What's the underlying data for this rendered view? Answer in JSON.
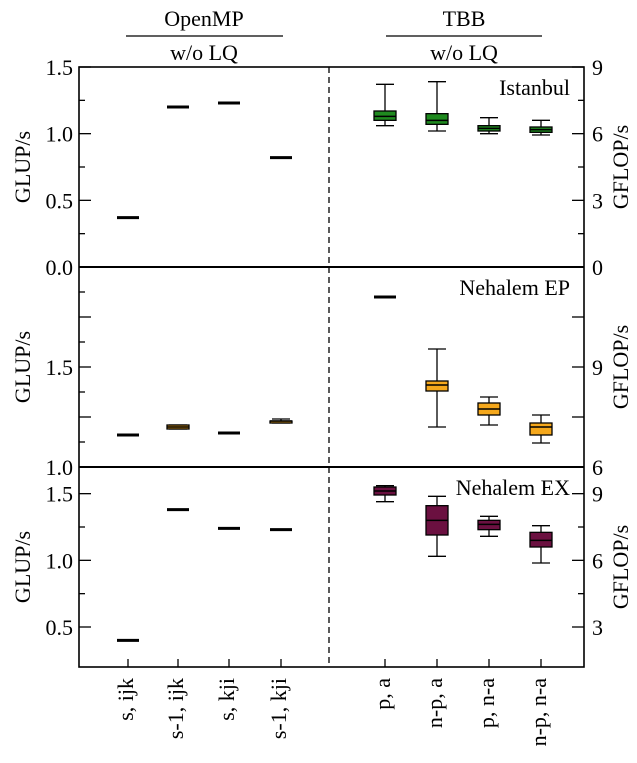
{
  "groups": {
    "left": {
      "title": "OpenMP",
      "subtitle": "w/o LQ"
    },
    "right": {
      "title": "TBB",
      "subtitle": "w/o LQ"
    }
  },
  "colors": {
    "Istanbul": "#1f8a1f",
    "Nehalem EP": "#f5a81c",
    "Nehalem EX": "#6b1040"
  },
  "chart_data": {
    "type": "box",
    "categories": [
      "s, ijk",
      "s-1, ijk",
      "s, kji",
      "s-1, kji",
      "p, a",
      "n-p, a",
      "p, n-a",
      "n-p, n-a"
    ],
    "panels": [
      {
        "name": "Istanbul",
        "ylabel": "GLUP/s",
        "y2label": "GFLOP/s",
        "ylim": [
          0,
          1.5
        ],
        "y_ticks": [
          "0.0",
          "0.5",
          "1.0",
          "1.5"
        ],
        "y2lim": [
          0,
          9
        ],
        "y2_ticks": [
          "0",
          "3",
          "6",
          "9"
        ],
        "lines": [
          0.37,
          1.2,
          1.23,
          0.82
        ],
        "boxes": [
          {
            "min": 1.06,
            "q1": 1.1,
            "median": 1.13,
            "q3": 1.17,
            "max": 1.37
          },
          {
            "min": 1.02,
            "q1": 1.07,
            "median": 1.1,
            "q3": 1.15,
            "max": 1.39
          },
          {
            "min": 1.0,
            "q1": 1.02,
            "median": 1.04,
            "q3": 1.06,
            "max": 1.12
          },
          {
            "min": 0.99,
            "q1": 1.01,
            "median": 1.03,
            "q3": 1.05,
            "max": 1.1
          }
        ]
      },
      {
        "name": "Nehalem EP",
        "ylabel": "GLUP/s",
        "y2label": "GFLOP/s",
        "ylim": [
          1.0,
          2.0
        ],
        "y_ticks": [
          "1.0",
          "",
          "1.5",
          ""
        ],
        "y2lim": [
          6,
          12
        ],
        "y2_ticks": [
          "6",
          "",
          "9",
          ""
        ],
        "lines": [
          1.16,
          null,
          1.17,
          null
        ],
        "line_boxes": [
          null,
          {
            "min": 1.19,
            "q1": 1.19,
            "median": 1.2,
            "q3": 1.21,
            "max": 1.21
          },
          null,
          {
            "min": 1.22,
            "q1": 1.22,
            "median": 1.23,
            "q3": 1.23,
            "max": 1.24
          }
        ],
        "boxes": [
          {
            "min": 1.85,
            "q1": 1.85,
            "median": 1.85,
            "q3": 1.85,
            "max": 1.85
          },
          {
            "min": 1.2,
            "q1": 1.38,
            "median": 1.41,
            "q3": 1.43,
            "max": 1.59
          },
          {
            "min": 1.21,
            "q1": 1.26,
            "median": 1.29,
            "q3": 1.32,
            "max": 1.35
          },
          {
            "min": 1.12,
            "q1": 1.16,
            "median": 1.2,
            "q3": 1.22,
            "max": 1.26
          }
        ]
      },
      {
        "name": "Nehalem EX",
        "ylabel": "GLUP/s",
        "y2label": "GFLOP/s",
        "ylim": [
          0.2,
          1.7
        ],
        "y_ticks": [
          "0.5",
          "1.0",
          "1.5"
        ],
        "y2lim": [
          1.2,
          10.2
        ],
        "y2_ticks": [
          "3",
          "6",
          "9"
        ],
        "lines": [
          0.4,
          1.38,
          1.24,
          1.23
        ],
        "boxes": [
          {
            "min": 1.44,
            "q1": 1.49,
            "median": 1.52,
            "q3": 1.55,
            "max": 1.56
          },
          {
            "min": 1.03,
            "q1": 1.19,
            "median": 1.3,
            "q3": 1.41,
            "max": 1.48
          },
          {
            "min": 1.18,
            "q1": 1.23,
            "median": 1.27,
            "q3": 1.3,
            "max": 1.33
          },
          {
            "min": 0.98,
            "q1": 1.1,
            "median": 1.15,
            "q3": 1.21,
            "max": 1.26
          }
        ]
      }
    ]
  }
}
